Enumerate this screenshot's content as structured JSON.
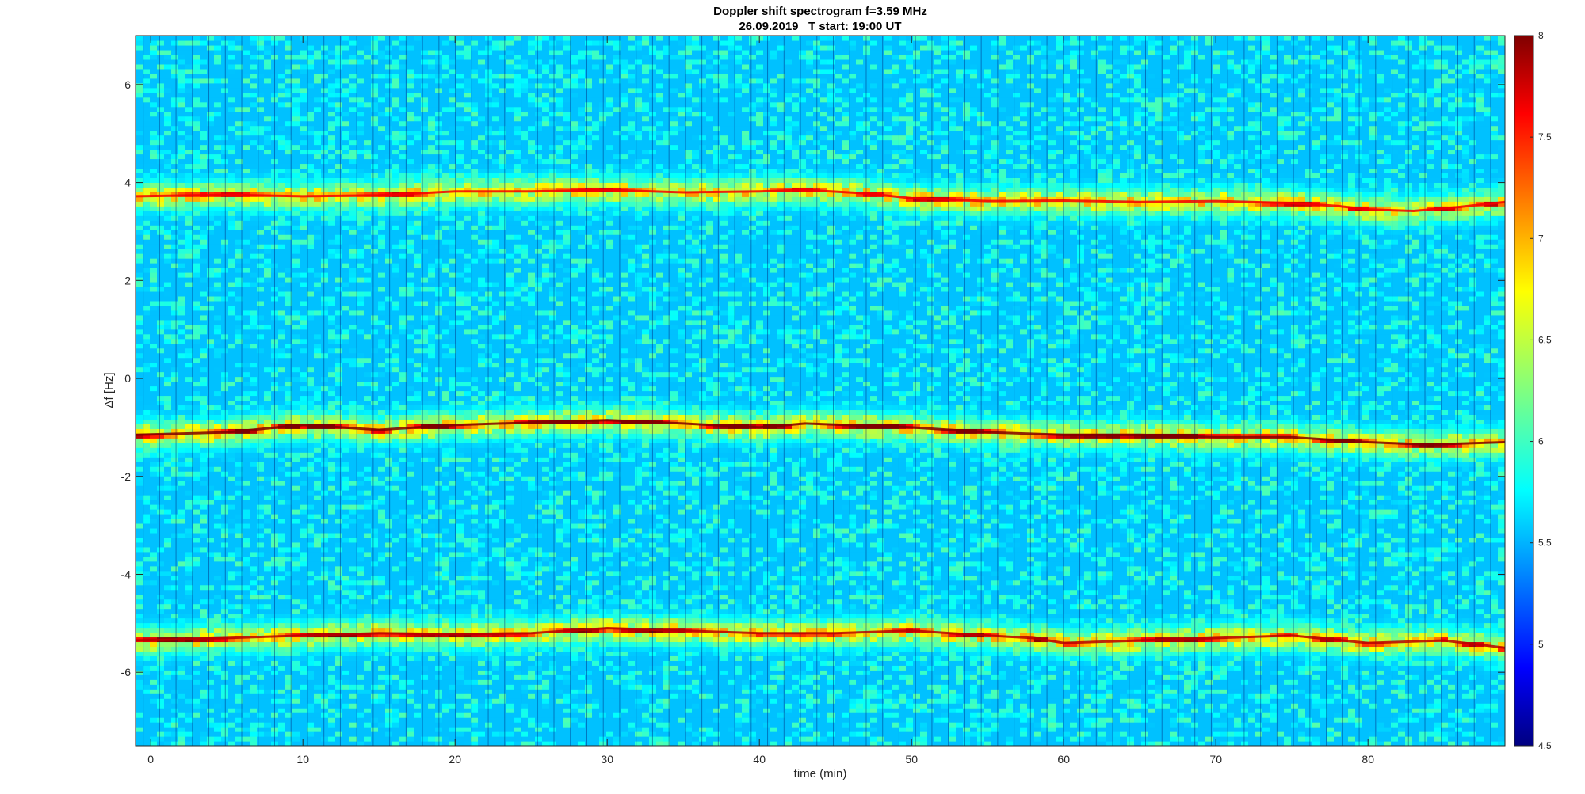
{
  "chart_data": {
    "type": "heatmap",
    "title": "Doppler shift spectrogram f=3.59 MHz",
    "subtitle": "26.09.2019   T start: 19:00 UT",
    "xlabel": "time (min)",
    "ylabel": "Δf [Hz]",
    "xlim": [
      -1,
      89
    ],
    "ylim": [
      -7.5,
      7
    ],
    "xticks": [
      0,
      10,
      20,
      30,
      40,
      50,
      60,
      70,
      80
    ],
    "yticks": [
      -6,
      -4,
      -2,
      0,
      2,
      4,
      6
    ],
    "colormap": "jet",
    "clim": [
      4.5,
      8
    ],
    "colorbar_ticks": [
      4.5,
      5,
      5.5,
      6,
      6.5,
      7,
      7.5,
      8
    ],
    "grid": false,
    "traces": [
      {
        "points": [
          [
            -1,
            3.72
          ],
          [
            5,
            3.75
          ],
          [
            10,
            3.72
          ],
          [
            15,
            3.74
          ],
          [
            20,
            3.82
          ],
          [
            25,
            3.82
          ],
          [
            30,
            3.85
          ],
          [
            35,
            3.8
          ],
          [
            40,
            3.82
          ],
          [
            43,
            3.85
          ],
          [
            47,
            3.78
          ],
          [
            50,
            3.68
          ],
          [
            55,
            3.62
          ],
          [
            60,
            3.63
          ],
          [
            65,
            3.6
          ],
          [
            70,
            3.62
          ],
          [
            75,
            3.58
          ],
          [
            78,
            3.52
          ],
          [
            80,
            3.45
          ],
          [
            83,
            3.42
          ],
          [
            86,
            3.5
          ],
          [
            89,
            3.6
          ]
        ],
        "peak": 7.6
      },
      {
        "points": [
          [
            -1,
            -1.15
          ],
          [
            5,
            -1.1
          ],
          [
            10,
            -0.95
          ],
          [
            15,
            -1.05
          ],
          [
            20,
            -0.95
          ],
          [
            25,
            -0.9
          ],
          [
            30,
            -0.85
          ],
          [
            35,
            -0.92
          ],
          [
            40,
            -1.0
          ],
          [
            43,
            -0.92
          ],
          [
            50,
            -1.0
          ],
          [
            55,
            -1.1
          ],
          [
            60,
            -1.15
          ],
          [
            65,
            -1.15
          ],
          [
            70,
            -1.2
          ],
          [
            75,
            -1.2
          ],
          [
            80,
            -1.3
          ],
          [
            84,
            -1.35
          ],
          [
            89,
            -1.3
          ]
        ],
        "peak": 8.0
      },
      {
        "points": [
          [
            -1,
            -5.35
          ],
          [
            5,
            -5.3
          ],
          [
            10,
            -5.25
          ],
          [
            15,
            -5.2
          ],
          [
            20,
            -5.22
          ],
          [
            25,
            -5.2
          ],
          [
            30,
            -5.1
          ],
          [
            35,
            -5.15
          ],
          [
            40,
            -5.2
          ],
          [
            45,
            -5.2
          ],
          [
            50,
            -5.15
          ],
          [
            55,
            -5.25
          ],
          [
            58,
            -5.3
          ],
          [
            60,
            -5.4
          ],
          [
            65,
            -5.35
          ],
          [
            70,
            -5.3
          ],
          [
            75,
            -5.25
          ],
          [
            80,
            -5.4
          ],
          [
            85,
            -5.35
          ],
          [
            89,
            -5.5
          ]
        ],
        "peak": 7.8
      }
    ]
  }
}
